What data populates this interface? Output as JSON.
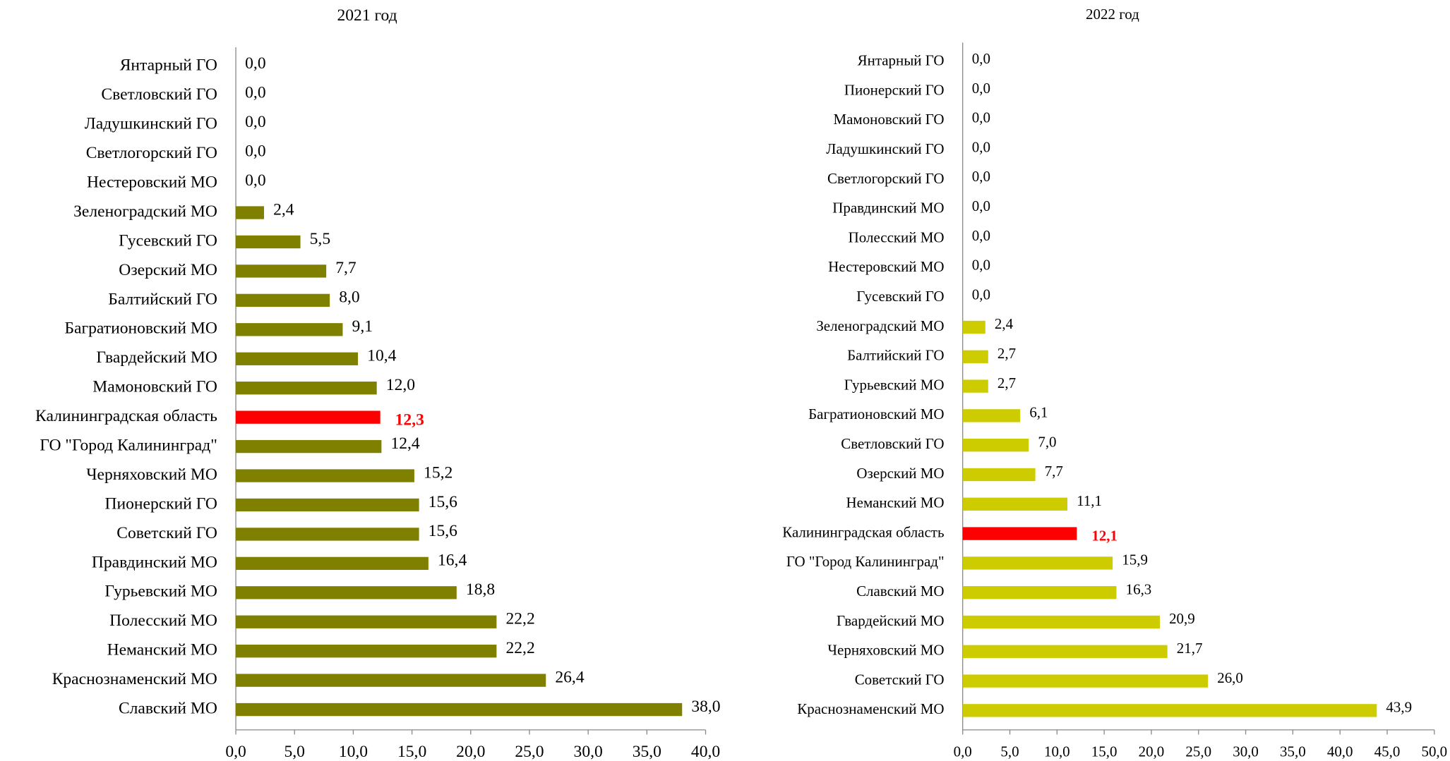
{
  "chart_data": [
    {
      "type": "bar",
      "orientation": "horizontal",
      "title": "2021 год",
      "color": "#808000",
      "categories": [
        "Янтарный ГО",
        "Светловский ГО",
        "Ладушкинский ГО",
        "Светлогорский ГО",
        "Нестеровский МО",
        "Зеленоградский МО",
        "Гусевский ГО",
        "Озерский МО",
        "Балтийский ГО",
        "Багратионовский МО",
        "Гвардейский МО",
        "Мамоновский ГО",
        "Калининградская область",
        "ГО \"Город Калининград\"",
        "Черняховский МО",
        "Пионерский ГО",
        "Советский ГО",
        "Правдинский МО",
        "Гурьевский МО",
        "Полесский МО",
        "Неманский МО",
        "Краснознаменский МО",
        "Славский МО"
      ],
      "values": [
        0,
        0,
        0,
        0,
        0,
        2.4,
        5.5,
        7.7,
        8.0,
        9.1,
        10.4,
        12.0,
        12.3,
        12.4,
        15.2,
        15.6,
        15.6,
        16.4,
        18.8,
        22.2,
        22.2,
        26.4,
        38.0
      ],
      "value_labels": [
        "0,0",
        "0,0",
        "0,0",
        "0,0",
        "0,0",
        "2,4",
        "5,5",
        "7,7",
        "8,0",
        "9,1",
        "10,4",
        "12,0",
        "12,3",
        "12,4",
        "15,2",
        "15,6",
        "15,6",
        "16,4",
        "18,8",
        "22,2",
        "22,2",
        "26,4",
        "38,0"
      ],
      "colors": [
        "#808000",
        "#808000",
        "#808000",
        "#808000",
        "#808000",
        "#808000",
        "#808000",
        "#808000",
        "#808000",
        "#808000",
        "#808000",
        "#808000",
        "#ff0000",
        "#808000",
        "#808000",
        "#808000",
        "#808000",
        "#808000",
        "#808000",
        "#808000",
        "#808000",
        "#808000",
        "#808000"
      ],
      "xlim": [
        0,
        40
      ],
      "xticks": [
        {
          "value": 0,
          "label": "0,0"
        },
        {
          "value": 5,
          "label": "5,0"
        },
        {
          "value": 10,
          "label": "10,0"
        },
        {
          "value": 15,
          "label": "15,0"
        },
        {
          "value": 20,
          "label": "20,0"
        },
        {
          "value": 25,
          "label": "25,0"
        },
        {
          "value": 30,
          "label": "30,0"
        },
        {
          "value": 35,
          "label": "35,0"
        },
        {
          "value": 40,
          "label": "40,0"
        }
      ]
    },
    {
      "type": "bar",
      "orientation": "horizontal",
      "title": "2022 год",
      "color": "#cccc00",
      "categories": [
        "Янтарный ГО",
        "Пионерский ГО",
        "Мамоновский ГО",
        "Ладушкинский ГО",
        "Светлогорский ГО",
        "Правдинский МО",
        "Полесский МО",
        "Нестеровский МО",
        "Гусевский ГО",
        "Зеленоградский МО",
        "Балтийский ГО",
        "Гурьевский МО",
        "Багратионовский МО",
        "Светловский ГО",
        "Озерский МО",
        "Неманский МО",
        "Калининградская область",
        "ГО \"Город Калининград\"",
        "Славский МО",
        "Гвардейский МО",
        "Черняховский МО",
        "Советский ГО",
        "Краснознаменский МО"
      ],
      "values": [
        0,
        0,
        0,
        0,
        0,
        0,
        0,
        0,
        0,
        2.4,
        2.7,
        2.7,
        6.1,
        7.0,
        7.7,
        11.1,
        12.1,
        15.9,
        16.3,
        20.9,
        21.7,
        26.0,
        43.9
      ],
      "value_labels": [
        "0,0",
        "0,0",
        "0,0",
        "0,0",
        "0,0",
        "0,0",
        "0,0",
        "0,0",
        "0,0",
        "2,4",
        "2,7",
        "2,7",
        "6,1",
        "7,0",
        "7,7",
        "11,1",
        "12,1",
        "15,9",
        "16,3",
        "20,9",
        "21,7",
        "26,0",
        "43,9"
      ],
      "colors": [
        "#cccc00",
        "#cccc00",
        "#cccc00",
        "#cccc00",
        "#cccc00",
        "#cccc00",
        "#cccc00",
        "#cccc00",
        "#cccc00",
        "#cccc00",
        "#cccc00",
        "#cccc00",
        "#cccc00",
        "#cccc00",
        "#cccc00",
        "#cccc00",
        "#ff0000",
        "#cccc00",
        "#cccc00",
        "#cccc00",
        "#cccc00",
        "#cccc00",
        "#cccc00"
      ],
      "xlim": [
        0,
        50
      ],
      "xticks": [
        {
          "value": 0,
          "label": "0,0"
        },
        {
          "value": 5,
          "label": "5,0"
        },
        {
          "value": 10,
          "label": "10,0"
        },
        {
          "value": 15,
          "label": "15,0"
        },
        {
          "value": 20,
          "label": "20,0"
        },
        {
          "value": 25,
          "label": "25,0"
        },
        {
          "value": 30,
          "label": "30,0"
        },
        {
          "value": 35,
          "label": "35,0"
        },
        {
          "value": 40,
          "label": "40,0"
        },
        {
          "value": 45,
          "label": "45,0"
        },
        {
          "value": 50,
          "label": "50,0"
        }
      ]
    }
  ]
}
